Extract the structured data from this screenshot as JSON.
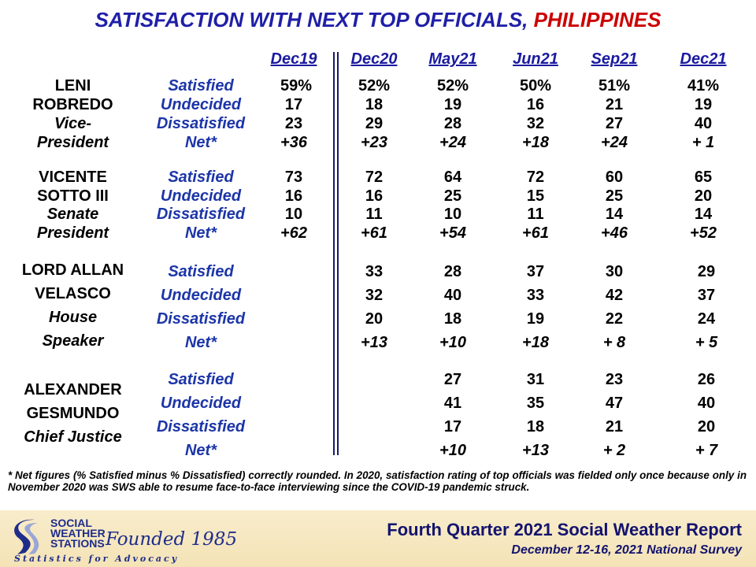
{
  "title": {
    "part1": "SATISFACTION  WITH NEXT TOP OFFICIALS,",
    "part2": " PHILIPPINES"
  },
  "columns": [
    "Dec19",
    "Dec20",
    "May21",
    "Jun21",
    "Sep21",
    "Dec21"
  ],
  "metrics": [
    "Satisfied",
    "Undecided",
    "Dissatisfied",
    "Net*"
  ],
  "officials": [
    {
      "name_lines": [
        "LENI",
        "ROBREDO",
        "Vice-",
        "President"
      ],
      "values": [
        [
          "59%",
          "52%",
          "52%",
          "50%",
          "51%",
          "41%"
        ],
        [
          "17",
          "18",
          "19",
          "16",
          "21",
          "19"
        ],
        [
          "23",
          "29",
          "28",
          "32",
          "27",
          "40"
        ],
        [
          "+36",
          "+23",
          "+24",
          "+18",
          "+24",
          "+ 1"
        ]
      ]
    },
    {
      "name_lines": [
        "VICENTE",
        "SOTTO III",
        "Senate",
        "President"
      ],
      "values": [
        [
          "73",
          "72",
          "64",
          "72",
          "60",
          "65"
        ],
        [
          "16",
          "16",
          "25",
          "15",
          "25",
          "20"
        ],
        [
          "10",
          "11",
          "10",
          "11",
          "14",
          "14"
        ],
        [
          "+62",
          "+61",
          "+54",
          "+61",
          "+46",
          "+52"
        ]
      ]
    },
    {
      "name_lines": [
        "LORD ALLAN",
        "VELASCO",
        "House",
        "Speaker"
      ],
      "values": [
        [
          "",
          "33",
          "28",
          "37",
          "30",
          "29"
        ],
        [
          "",
          "32",
          "40",
          "33",
          "42",
          "37"
        ],
        [
          "",
          "20",
          "18",
          "19",
          "22",
          "24"
        ],
        [
          "",
          "+13",
          "+10",
          "+18",
          "+ 8",
          "+ 5"
        ]
      ]
    },
    {
      "name_lines": [
        "ALEXANDER",
        "GESMUNDO",
        "Chief Justice"
      ],
      "values": [
        [
          "",
          "",
          "27",
          "31",
          "23",
          "26"
        ],
        [
          "",
          "",
          "41",
          "35",
          "47",
          "40"
        ],
        [
          "",
          "",
          "17",
          "18",
          "21",
          "20"
        ],
        [
          "",
          "",
          "+10",
          "+13",
          "+ 2",
          "+ 7"
        ]
      ]
    }
  ],
  "footnote": "* Net figures (% Satisfied minus % Dissatisfied) correctly rounded. In 2020, satisfaction rating of top officials was fielded only once because only in November 2020 was SWS able to resume face-to-face interviewing since the COVID-19 pandemic struck.",
  "logo": {
    "line1": "SOCIAL",
    "line2": "WEATHER",
    "line3": "STATIONS",
    "founded": "Founded 1985",
    "tagline": "Statistics for Advocacy"
  },
  "report_title": "Fourth Quarter 2021 Social Weather Report",
  "survey_line": "December 12-16, 2021 National Survey",
  "colors": {
    "title_blue": "#1f1fa8",
    "title_red": "#cc0000",
    "metric_blue": "#1c35a8",
    "band": "#f4e3b6"
  }
}
